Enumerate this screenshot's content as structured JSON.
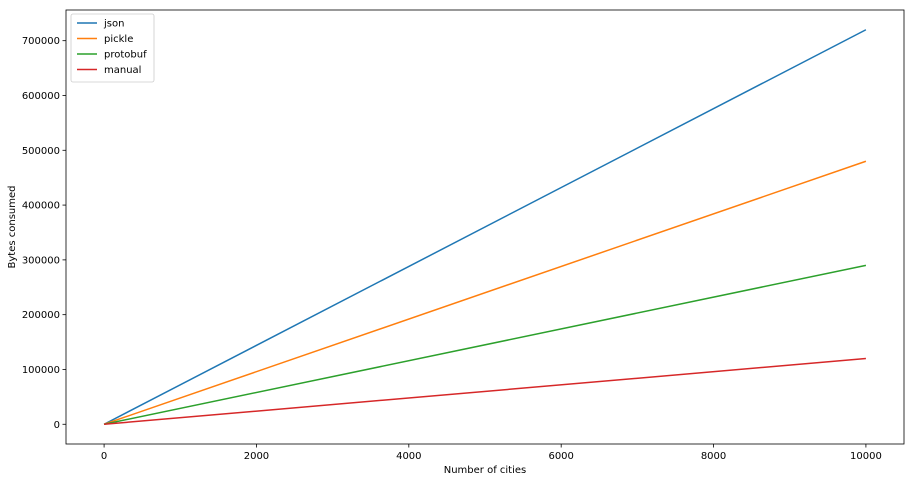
{
  "chart_data": {
    "type": "line",
    "xlabel": "Number of cities",
    "ylabel": "Bytes consumed",
    "xlim": [
      -500,
      10500
    ],
    "ylim": [
      -36000,
      756000
    ],
    "xticks": [
      0,
      2000,
      4000,
      6000,
      8000,
      10000
    ],
    "xtick_labels": [
      "0",
      "2000",
      "4000",
      "6000",
      "8000",
      "10000"
    ],
    "yticks": [
      0,
      100000,
      200000,
      300000,
      400000,
      500000,
      600000,
      700000
    ],
    "ytick_labels": [
      "0",
      "100000",
      "200000",
      "300000",
      "400000",
      "500000",
      "600000",
      "700000"
    ],
    "grid": false,
    "legend_position": "top-left",
    "x": [
      0,
      10000
    ],
    "series": [
      {
        "name": "json",
        "color": "#1f77b4",
        "values": [
          0,
          720000
        ]
      },
      {
        "name": "pickle",
        "color": "#ff7f0e",
        "values": [
          0,
          480000
        ]
      },
      {
        "name": "protobuf",
        "color": "#2ca02c",
        "values": [
          0,
          290000
        ]
      },
      {
        "name": "manual",
        "color": "#d62728",
        "values": [
          0,
          120000
        ]
      }
    ]
  }
}
